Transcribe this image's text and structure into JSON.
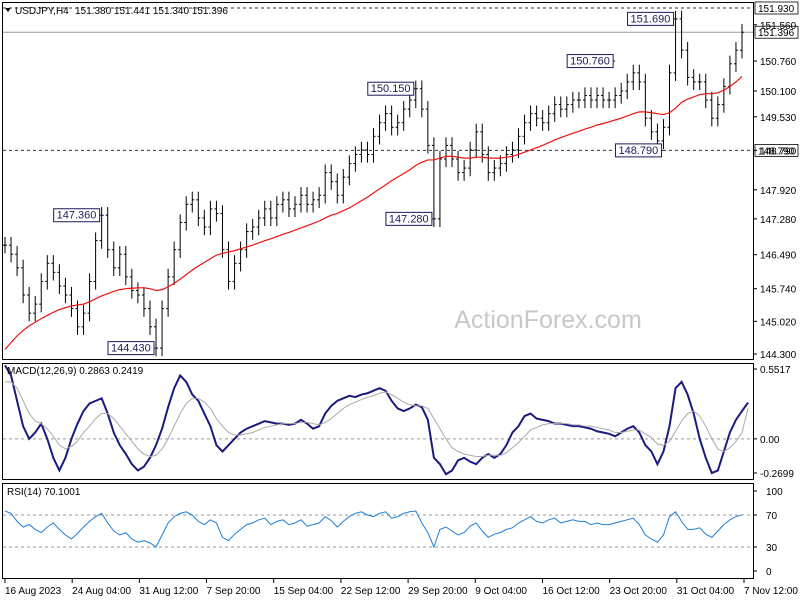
{
  "header": {
    "symbol": "USDJPY,H4",
    "ohlc": "151.380 151.441 151.340 151.396"
  },
  "watermark": "ActionForex.com",
  "colors": {
    "price": "#000000",
    "ma": "#ee1111",
    "macd_line": "#1a1a80",
    "macd_signal": "#aaaaaa",
    "rsi": "#1e7fd6",
    "label_border": "#1a1a5e",
    "dotted": "#555555",
    "cur_line": "#999999"
  },
  "price_axis": {
    "ticks": [
      "151.560",
      "150.760",
      "150.100",
      "149.530",
      "148.790",
      "147.920",
      "147.280",
      "146.490",
      "145.740",
      "145.020",
      "144.300"
    ],
    "hlines": [
      {
        "value": 151.93,
        "label": "151.930",
        "style": "dotted"
      },
      {
        "value": 151.396,
        "label": "151.396",
        "style": "solid"
      },
      {
        "value": 148.79,
        "label": "148.790",
        "style": "dotted"
      }
    ]
  },
  "macd_panel": {
    "title": "MACD(12,26,9) 0.2863 0.2419",
    "ticks": [
      "0.5517",
      "0.00",
      "-0.2699"
    ]
  },
  "rsi_panel": {
    "title": "RSI(14) 70.1001",
    "ticks": [
      "100",
      "70",
      "30",
      "0"
    ]
  },
  "x_axis": {
    "labels": [
      "16 Aug 2023",
      "24 Aug 04:00",
      "31 Aug 12:00",
      "7 Sep 20:00",
      "15 Sep 04:00",
      "22 Sep 12:00",
      "29 Sep 20:00",
      "9 Oct 04:00",
      "16 Oct 12:00",
      "23 Oct 20:00",
      "31 Oct 04:00",
      "7 Nov 12:00"
    ]
  },
  "chart_data": [
    {
      "type": "line",
      "panel": "price",
      "x_range": [
        0,
        122
      ],
      "ylim": [
        144.3,
        151.93
      ],
      "series": [
        {
          "values": [
            146.7,
            146.5,
            146.2,
            145.6,
            145.2,
            145.4,
            145.9,
            146.3,
            146.1,
            145.8,
            145.6,
            145.3,
            144.9,
            145.2,
            145.9,
            146.8,
            147.36,
            146.6,
            146.2,
            146.5,
            146.0,
            145.7,
            145.6,
            145.3,
            144.9,
            144.43,
            145.3,
            146.0,
            146.6,
            147.2,
            147.6,
            147.7,
            147.3,
            147.1,
            147.5,
            147.4,
            146.6,
            145.9,
            146.3,
            146.6,
            147.0,
            147.1,
            147.3,
            147.5,
            147.3,
            147.6,
            147.7,
            147.5,
            147.6,
            147.8,
            147.6,
            147.7,
            147.8,
            148.3,
            148.1,
            147.8,
            148.2,
            148.5,
            148.7,
            148.8,
            148.7,
            149.1,
            149.4,
            149.6,
            149.3,
            149.4,
            149.7,
            149.9,
            150.15,
            149.7,
            148.9,
            147.28,
            148.6,
            148.9,
            148.6,
            148.3,
            148.4,
            148.8,
            149.2,
            148.7,
            148.3,
            148.4,
            148.5,
            148.7,
            148.8,
            149.1,
            149.4,
            149.6,
            149.5,
            149.4,
            149.6,
            149.8,
            149.7,
            149.8,
            149.9,
            149.9,
            150.0,
            149.9,
            150.0,
            149.9,
            149.9,
            150.0,
            150.1,
            150.3,
            150.5,
            150.3,
            149.5,
            149.2,
            149.0,
            149.3,
            150.5,
            151.69,
            151.0,
            150.4,
            150.3,
            150.3,
            149.9,
            149.5,
            149.8,
            150.2,
            150.7,
            151.0,
            151.396
          ]
        },
        {
          "values": [
            144.4,
            144.55,
            144.7,
            144.82,
            144.92,
            145.0,
            145.08,
            145.15,
            145.22,
            145.28,
            145.32,
            145.36,
            145.38,
            145.4,
            145.45,
            145.52,
            145.58,
            145.63,
            145.68,
            145.72,
            145.74,
            145.75,
            145.76,
            145.76,
            145.74,
            145.7,
            145.72,
            145.78,
            145.86,
            145.95,
            146.05,
            146.15,
            146.24,
            146.32,
            146.4,
            146.48,
            146.52,
            146.55,
            146.58,
            146.62,
            146.66,
            146.7,
            146.75,
            146.8,
            146.84,
            146.89,
            146.94,
            146.98,
            147.03,
            147.08,
            147.13,
            147.18,
            147.23,
            147.3,
            147.36,
            147.4,
            147.46,
            147.52,
            147.6,
            147.68,
            147.76,
            147.85,
            147.94,
            148.03,
            148.12,
            148.2,
            148.28,
            148.36,
            148.46,
            148.53,
            148.58,
            148.58,
            148.62,
            148.66,
            148.66,
            148.64,
            148.62,
            148.62,
            148.64,
            148.64,
            148.62,
            148.62,
            148.62,
            148.64,
            148.66,
            148.7,
            148.75,
            148.8,
            148.85,
            148.9,
            148.96,
            149.02,
            149.07,
            149.12,
            149.17,
            149.21,
            149.26,
            149.3,
            149.35,
            149.38,
            149.42,
            149.46,
            149.5,
            149.55,
            149.6,
            149.64,
            149.64,
            149.62,
            149.6,
            149.58,
            149.62,
            149.72,
            149.85,
            149.92,
            149.97,
            150.02,
            150.04,
            150.04,
            150.06,
            150.12,
            150.2,
            150.3,
            150.42
          ]
        }
      ],
      "annotations": [
        {
          "x": 16,
          "value": 147.36,
          "text": "147.360"
        },
        {
          "x": 25,
          "value": 144.43,
          "text": "144.430"
        },
        {
          "x": 68,
          "value": 150.15,
          "text": "150.150"
        },
        {
          "x": 71,
          "value": 147.28,
          "text": "147.280"
        },
        {
          "x": 101,
          "value": 150.76,
          "text": "150.760"
        },
        {
          "x": 109,
          "value": 148.79,
          "text": "148.790"
        },
        {
          "x": 111,
          "value": 151.69,
          "text": "151.690"
        }
      ]
    },
    {
      "type": "line",
      "panel": "macd",
      "x_range": [
        0,
        122
      ],
      "ylim": [
        -0.2699,
        0.5517
      ],
      "series": [
        {
          "name": "MACD",
          "values": [
            0.58,
            0.5,
            0.3,
            0.1,
            0.0,
            0.05,
            0.12,
            0.0,
            -0.15,
            -0.25,
            -0.15,
            0.0,
            0.12,
            0.22,
            0.28,
            0.3,
            0.32,
            0.2,
            0.05,
            -0.05,
            -0.12,
            -0.2,
            -0.25,
            -0.22,
            -0.15,
            -0.05,
            0.08,
            0.25,
            0.4,
            0.5,
            0.45,
            0.35,
            0.3,
            0.2,
            0.1,
            -0.05,
            -0.1,
            -0.05,
            0.0,
            0.05,
            0.08,
            0.1,
            0.12,
            0.14,
            0.13,
            0.12,
            0.12,
            0.11,
            0.12,
            0.15,
            0.12,
            0.08,
            0.1,
            0.2,
            0.26,
            0.3,
            0.32,
            0.34,
            0.33,
            0.35,
            0.36,
            0.38,
            0.4,
            0.38,
            0.3,
            0.24,
            0.22,
            0.24,
            0.27,
            0.25,
            0.15,
            -0.15,
            -0.2,
            -0.28,
            -0.25,
            -0.17,
            -0.15,
            -0.18,
            -0.2,
            -0.15,
            -0.12,
            -0.15,
            -0.12,
            -0.05,
            0.05,
            0.1,
            0.18,
            0.2,
            0.16,
            0.15,
            0.14,
            0.12,
            0.12,
            0.11,
            0.1,
            0.1,
            0.09,
            0.08,
            0.06,
            0.05,
            0.04,
            0.02,
            0.05,
            0.08,
            0.1,
            0.05,
            -0.05,
            -0.1,
            -0.2,
            -0.1,
            0.1,
            0.4,
            0.45,
            0.35,
            0.2,
            0.0,
            -0.15,
            -0.27,
            -0.25,
            -0.1,
            0.05,
            0.15,
            0.22,
            0.2863
          ]
        },
        {
          "name": "Signal",
          "values": [
            0.45,
            0.45,
            0.4,
            0.3,
            0.2,
            0.14,
            0.12,
            0.08,
            0.02,
            -0.05,
            -0.08,
            -0.06,
            -0.02,
            0.05,
            0.1,
            0.16,
            0.2,
            0.2,
            0.16,
            0.1,
            0.04,
            -0.02,
            -0.08,
            -0.12,
            -0.14,
            -0.13,
            -0.08,
            0.0,
            0.1,
            0.2,
            0.28,
            0.32,
            0.32,
            0.29,
            0.24,
            0.16,
            0.1,
            0.05,
            0.03,
            0.03,
            0.04,
            0.05,
            0.07,
            0.09,
            0.1,
            0.11,
            0.12,
            0.12,
            0.12,
            0.13,
            0.13,
            0.12,
            0.11,
            0.13,
            0.16,
            0.2,
            0.24,
            0.27,
            0.29,
            0.31,
            0.33,
            0.34,
            0.36,
            0.37,
            0.35,
            0.32,
            0.29,
            0.27,
            0.26,
            0.26,
            0.24,
            0.16,
            0.08,
            0.0,
            -0.07,
            -0.1,
            -0.12,
            -0.13,
            -0.14,
            -0.14,
            -0.13,
            -0.13,
            -0.13,
            -0.11,
            -0.07,
            -0.03,
            0.02,
            0.07,
            0.09,
            0.11,
            0.12,
            0.12,
            0.12,
            0.12,
            0.11,
            0.11,
            0.1,
            0.1,
            0.09,
            0.08,
            0.07,
            0.05,
            0.05,
            0.06,
            0.07,
            0.07,
            0.04,
            0.01,
            -0.04,
            -0.05,
            -0.02,
            0.06,
            0.14,
            0.2,
            0.22,
            0.18,
            0.1,
            0.0,
            -0.08,
            -0.1,
            -0.07,
            -0.02,
            0.05,
            0.2419
          ]
        }
      ]
    },
    {
      "type": "line",
      "panel": "rsi",
      "x_range": [
        0,
        122
      ],
      "ylim": [
        0,
        100
      ],
      "series": [
        {
          "name": "RSI(14)",
          "values": [
            75,
            72,
            62,
            55,
            58,
            52,
            48,
            55,
            60,
            52,
            45,
            40,
            47,
            55,
            62,
            68,
            72,
            60,
            50,
            45,
            48,
            40,
            36,
            38,
            35,
            30,
            45,
            60,
            68,
            72,
            74,
            70,
            62,
            58,
            64,
            60,
            42,
            38,
            46,
            52,
            58,
            60,
            64,
            66,
            58,
            62,
            64,
            58,
            60,
            64,
            56,
            58,
            60,
            68,
            63,
            55,
            62,
            68,
            72,
            74,
            70,
            68,
            72,
            74,
            66,
            68,
            72,
            74,
            75,
            60,
            48,
            30,
            52,
            55,
            50,
            45,
            48,
            56,
            60,
            50,
            42,
            46,
            48,
            52,
            54,
            60,
            64,
            68,
            62,
            60,
            64,
            66,
            60,
            62,
            64,
            62,
            62,
            58,
            60,
            58,
            58,
            60,
            62,
            64,
            66,
            58,
            45,
            40,
            36,
            45,
            68,
            74,
            62,
            52,
            52,
            54,
            46,
            42,
            50,
            58,
            64,
            68,
            70.1
          ]
        }
      ]
    }
  ]
}
